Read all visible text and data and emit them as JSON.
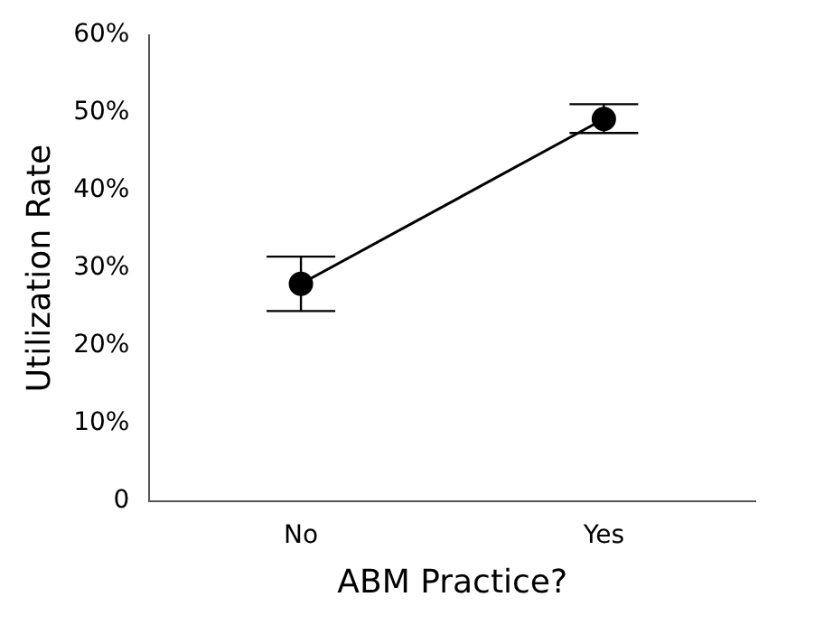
{
  "chart_data": {
    "type": "line",
    "xlabel": "ABM Practice?",
    "ylabel": "Utilization Rate",
    "categories": [
      "No",
      "Yes"
    ],
    "values": [
      28,
      49.2
    ],
    "errors": [
      [
        24.5,
        31.5
      ],
      [
        47.4,
        51.1
      ]
    ],
    "color": "#000000",
    "marker": "circle",
    "line_style": "solid",
    "grid": false,
    "legend": false,
    "ylim": [
      0,
      60
    ],
    "yticks": [
      0,
      {
        "value": 10,
        "label": "10%"
      },
      {
        "value": 20,
        "label": "20%"
      },
      {
        "value": 30,
        "label": "30%"
      },
      {
        "value": 40,
        "label": "40%"
      },
      {
        "value": 50,
        "label": "50%"
      },
      {
        "value": 60,
        "label": "60%"
      }
    ]
  }
}
